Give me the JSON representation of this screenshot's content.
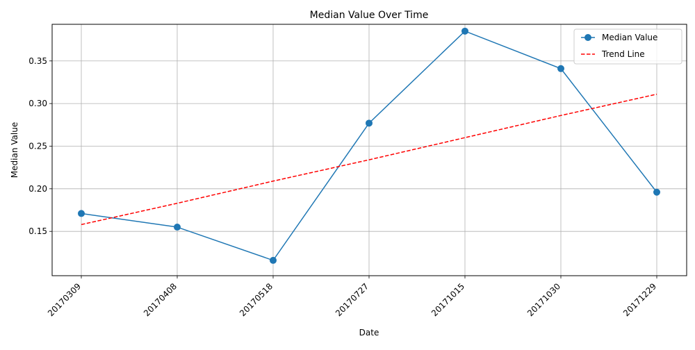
{
  "chart_data": {
    "type": "line",
    "title": "Median Value Over Time",
    "xlabel": "Date",
    "ylabel": "Median Value",
    "categories": [
      "20170309",
      "20170408",
      "20170518",
      "20170727",
      "20171015",
      "20171030",
      "20171229"
    ],
    "series": [
      {
        "name": "Median Value",
        "values": [
          0.171,
          0.155,
          0.116,
          0.277,
          0.385,
          0.341,
          0.196
        ],
        "color": "#1f77b4",
        "style": "solid",
        "marker": "circle"
      },
      {
        "name": "Trend Line",
        "values": [
          0.158,
          0.183,
          0.209,
          0.234,
          0.26,
          0.286,
          0.311
        ],
        "color": "#ff0000",
        "style": "dashed",
        "marker": "none"
      }
    ],
    "ylim": [
      0.098,
      0.393
    ],
    "yticks": [
      0.15,
      0.2,
      0.25,
      0.3,
      0.35
    ],
    "ytick_labels": [
      "0.15",
      "0.20",
      "0.25",
      "0.30",
      "0.35"
    ],
    "grid": true,
    "legend_position": "top-right"
  }
}
